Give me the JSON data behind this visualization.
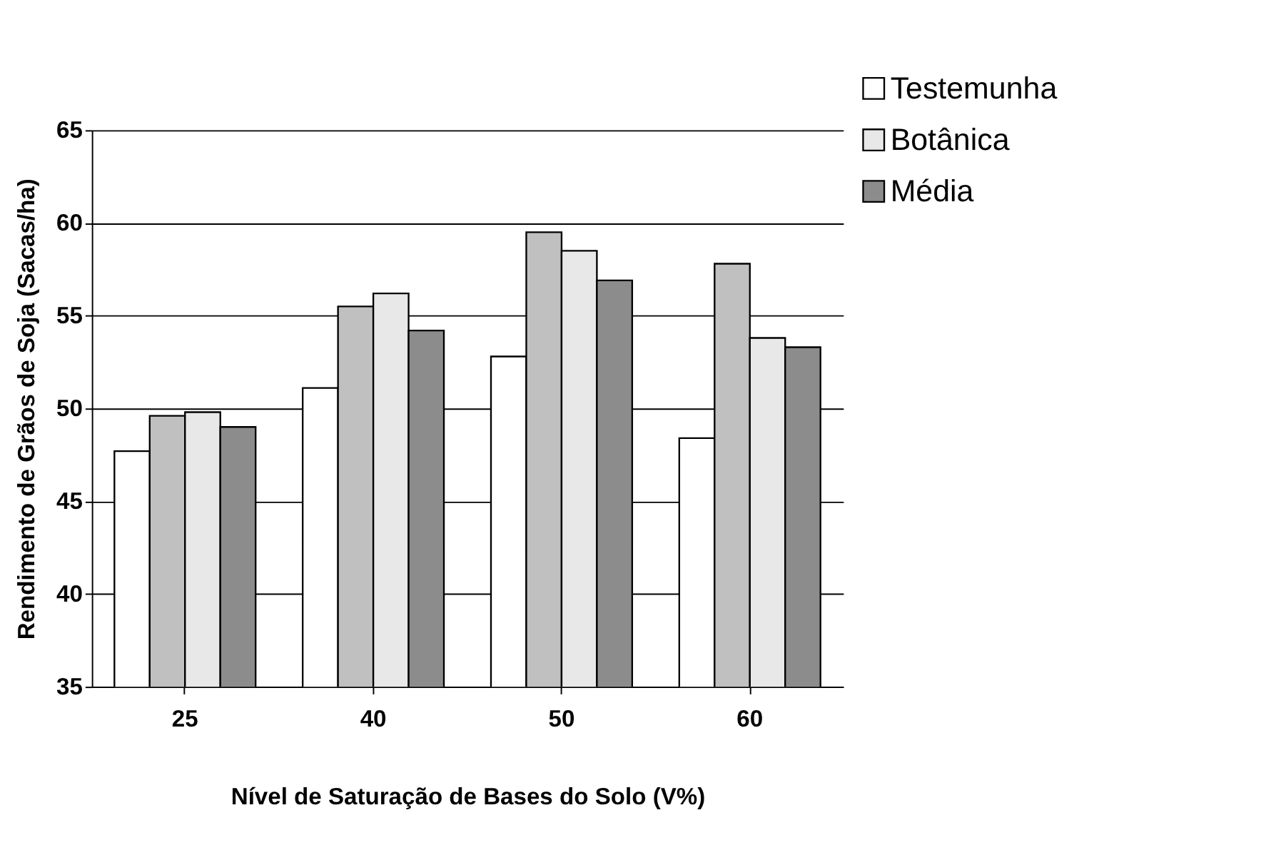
{
  "chart_data": {
    "type": "bar",
    "xlabel": "Nível de Saturação de Bases do Solo (V%)",
    "ylabel": "Rendimento de Grãos de Soja (Sacas/ha)",
    "categories": [
      "25",
      "40",
      "50",
      "60"
    ],
    "series": [
      {
        "name": "Testemunha",
        "color": "#ffffff",
        "values": [
          47.7,
          51.1,
          52.8,
          48.4
        ]
      },
      {
        "color": "#c0c0c0",
        "values": [
          49.6,
          55.5,
          59.5,
          57.8
        ]
      },
      {
        "name": "Botânica",
        "color": "#e8e8e8",
        "values": [
          49.8,
          56.2,
          58.5,
          53.8
        ]
      },
      {
        "name": "Média",
        "color": "#8c8c8c",
        "values": [
          49.0,
          54.2,
          56.9,
          53.3
        ]
      }
    ],
    "ylim": [
      35,
      65
    ],
    "yticks": [
      35,
      40,
      45,
      50,
      55,
      60,
      65
    ],
    "grid": "y",
    "legend": "top right"
  }
}
